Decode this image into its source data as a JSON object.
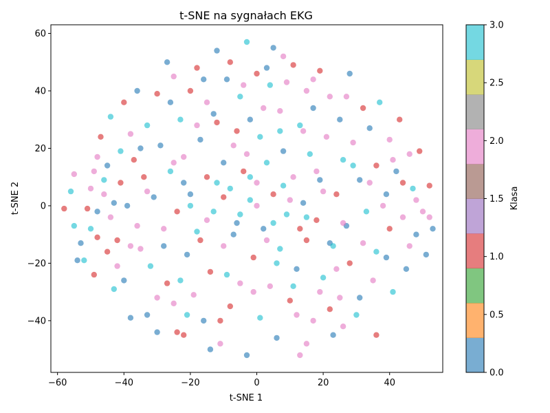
{
  "chart_data": {
    "type": "scatter",
    "title": "t-SNE na sygnałach EKG",
    "xlabel": "t-SNE 1",
    "ylabel": "t-SNE 2",
    "xlim": [
      -62,
      56
    ],
    "ylim": [
      -58,
      63
    ],
    "xticks": [
      -60,
      -40,
      -20,
      0,
      20,
      40
    ],
    "yticks": [
      -40,
      -20,
      0,
      20,
      40,
      60
    ],
    "xtick_labels": [
      "−60",
      "−40",
      "−20",
      "0",
      "20",
      "40"
    ],
    "ytick_labels": [
      "−40",
      "−20",
      "0",
      "20",
      "40",
      "60"
    ],
    "grid": false,
    "point_alpha": 0.6,
    "classes": [
      {
        "value": 0,
        "color": "#1f77b4"
      },
      {
        "value": 1,
        "color": "#d62728"
      },
      {
        "value": 2,
        "color": "#e377c2"
      },
      {
        "value": 3,
        "color": "#17becf"
      }
    ],
    "points": [
      [
        -56,
        5,
        3
      ],
      [
        -55,
        11,
        2
      ],
      [
        -55,
        -7,
        3
      ],
      [
        -58,
        -1,
        1
      ],
      [
        -54,
        -19,
        0
      ],
      [
        -53,
        -13,
        0
      ],
      [
        -52,
        -19,
        3
      ],
      [
        -51,
        -1,
        1
      ],
      [
        -50,
        6,
        2
      ],
      [
        -50,
        -8,
        3
      ],
      [
        -49,
        12,
        2
      ],
      [
        -49,
        -24,
        1
      ],
      [
        -48,
        17,
        2
      ],
      [
        -48,
        -11,
        1
      ],
      [
        -47,
        24,
        1
      ],
      [
        -46,
        9,
        3
      ],
      [
        -45,
        -16,
        1
      ],
      [
        -45,
        14,
        0
      ],
      [
        -44,
        31,
        3
      ],
      [
        -43,
        -29,
        3
      ],
      [
        -43,
        1,
        0
      ],
      [
        -42,
        -21,
        2
      ],
      [
        -42,
        -12,
        1
      ],
      [
        -41,
        19,
        3
      ],
      [
        -40,
        36,
        1
      ],
      [
        -40,
        -26,
        0
      ],
      [
        -39,
        0,
        0
      ],
      [
        -38,
        -39,
        0
      ],
      [
        -38,
        25,
        2
      ],
      [
        -37,
        16,
        1
      ],
      [
        -36,
        -7,
        2
      ],
      [
        -36,
        40,
        0
      ],
      [
        -35,
        -15,
        2
      ],
      [
        -34,
        10,
        1
      ],
      [
        -33,
        -38,
        0
      ],
      [
        -33,
        28,
        3
      ],
      [
        -32,
        -21,
        3
      ],
      [
        -31,
        3,
        0
      ],
      [
        -30,
        39,
        1
      ],
      [
        -30,
        -44,
        0
      ],
      [
        -29,
        21,
        0
      ],
      [
        -28,
        -8,
        2
      ],
      [
        -27,
        -27,
        1
      ],
      [
        -27,
        50,
        0
      ],
      [
        -26,
        12,
        3
      ],
      [
        -25,
        -34,
        2
      ],
      [
        -25,
        45,
        2
      ],
      [
        -24,
        -2,
        1
      ],
      [
        -23,
        30,
        3
      ],
      [
        -22,
        -45,
        1
      ],
      [
        -22,
        17,
        2
      ],
      [
        -21,
        -17,
        0
      ],
      [
        -20,
        40,
        1
      ],
      [
        -20,
        4,
        0
      ],
      [
        -19,
        -31,
        2
      ],
      [
        -18,
        48,
        1
      ],
      [
        -18,
        -9,
        3
      ],
      [
        -17,
        23,
        0
      ],
      [
        -16,
        -40,
        0
      ],
      [
        -15,
        10,
        1
      ],
      [
        -15,
        36,
        2
      ],
      [
        -14,
        -23,
        1
      ],
      [
        -13,
        -2,
        3
      ],
      [
        -12,
        54,
        0
      ],
      [
        -12,
        29,
        1
      ],
      [
        -11,
        -48,
        2
      ],
      [
        -10,
        15,
        0
      ],
      [
        -10,
        -14,
        2
      ],
      [
        -9,
        44,
        0
      ],
      [
        -8,
        6,
        3
      ],
      [
        -8,
        -35,
        1
      ],
      [
        -7,
        21,
        2
      ],
      [
        -6,
        -6,
        0
      ],
      [
        -5,
        38,
        3
      ],
      [
        -5,
        -27,
        2
      ],
      [
        -4,
        12,
        1
      ],
      [
        -3,
        57,
        3
      ],
      [
        -3,
        -52,
        0
      ],
      [
        -2,
        2,
        3
      ],
      [
        -2,
        30,
        0
      ],
      [
        -1,
        -18,
        1
      ],
      [
        0,
        46,
        1
      ],
      [
        0,
        8,
        2
      ],
      [
        1,
        -39,
        3
      ],
      [
        1,
        24,
        3
      ],
      [
        2,
        -8,
        0
      ],
      [
        3,
        48,
        0
      ],
      [
        3,
        15,
        3
      ],
      [
        4,
        -28,
        2
      ],
      [
        5,
        55,
        0
      ],
      [
        5,
        4,
        1
      ],
      [
        6,
        -46,
        0
      ],
      [
        7,
        33,
        2
      ],
      [
        7,
        -15,
        3
      ],
      [
        8,
        19,
        0
      ],
      [
        9,
        43,
        2
      ],
      [
        9,
        -3,
        3
      ],
      [
        10,
        -33,
        1
      ],
      [
        11,
        10,
        2
      ],
      [
        11,
        49,
        1
      ],
      [
        12,
        -22,
        0
      ],
      [
        13,
        28,
        3
      ],
      [
        13,
        -52,
        2
      ],
      [
        14,
        1,
        0
      ],
      [
        15,
        40,
        2
      ],
      [
        15,
        -12,
        1
      ],
      [
        16,
        18,
        3
      ],
      [
        17,
        -40,
        2
      ],
      [
        17,
        34,
        0
      ],
      [
        18,
        -5,
        1
      ],
      [
        19,
        47,
        1
      ],
      [
        19,
        9,
        0
      ],
      [
        20,
        -25,
        3
      ],
      [
        21,
        24,
        2
      ],
      [
        22,
        -13,
        0
      ],
      [
        22,
        38,
        2
      ],
      [
        23,
        -45,
        0
      ],
      [
        24,
        4,
        1
      ],
      [
        25,
        30,
        0
      ],
      [
        25,
        -32,
        2
      ],
      [
        26,
        16,
        3
      ],
      [
        27,
        -7,
        0
      ],
      [
        28,
        46,
        0
      ],
      [
        28,
        -20,
        1
      ],
      [
        29,
        22,
        2
      ],
      [
        30,
        -38,
        3
      ],
      [
        31,
        9,
        0
      ],
      [
        32,
        34,
        1
      ],
      [
        32,
        -13,
        2
      ],
      [
        33,
        -2,
        3
      ],
      [
        34,
        27,
        0
      ],
      [
        35,
        -26,
        2
      ],
      [
        36,
        14,
        1
      ],
      [
        36,
        -45,
        1
      ],
      [
        37,
        36,
        3
      ],
      [
        38,
        0,
        2
      ],
      [
        39,
        -18,
        0
      ],
      [
        40,
        23,
        2
      ],
      [
        40,
        -8,
        1
      ],
      [
        41,
        -30,
        3
      ],
      [
        42,
        12,
        0
      ],
      [
        43,
        30,
        1
      ],
      [
        44,
        -4,
        2
      ],
      [
        45,
        -22,
        0
      ],
      [
        46,
        18,
        2
      ],
      [
        47,
        6,
        3
      ],
      [
        48,
        -10,
        0
      ],
      [
        49,
        19,
        1
      ],
      [
        50,
        -2,
        2
      ],
      [
        51,
        -17,
        0
      ],
      [
        52,
        7,
        1
      ],
      [
        52,
        -4,
        2
      ],
      [
        53,
        -8,
        0
      ],
      [
        -20,
        0,
        3
      ],
      [
        -15,
        -5,
        2
      ],
      [
        -10,
        3,
        1
      ],
      [
        -5,
        -3,
        3
      ],
      [
        0,
        0,
        2
      ],
      [
        5,
        -6,
        3
      ],
      [
        10,
        2,
        2
      ],
      [
        15,
        -4,
        3
      ],
      [
        20,
        5,
        2
      ],
      [
        -12,
        8,
        3
      ],
      [
        -7,
        -10,
        0
      ],
      [
        -2,
        10,
        3
      ],
      [
        3,
        -12,
        2
      ],
      [
        8,
        7,
        3
      ],
      [
        13,
        -8,
        1
      ],
      [
        18,
        12,
        2
      ],
      [
        -17,
        -12,
        1
      ],
      [
        -22,
        8,
        0
      ],
      [
        23,
        -14,
        3
      ],
      [
        -3,
        18,
        2
      ],
      [
        6,
        -20,
        3
      ],
      [
        -25,
        15,
        2
      ],
      [
        26,
        -6,
        2
      ],
      [
        -28,
        -14,
        0
      ],
      [
        29,
        14,
        3
      ],
      [
        -33,
        5,
        2
      ],
      [
        34,
        8,
        2
      ],
      [
        -6,
        26,
        1
      ],
      [
        7,
        26,
        3
      ],
      [
        -9,
        -24,
        3
      ],
      [
        11,
        -28,
        3
      ],
      [
        -1,
        -30,
        2
      ],
      [
        2,
        34,
        2
      ],
      [
        -13,
        32,
        0
      ],
      [
        14,
        26,
        2
      ],
      [
        -18,
        28,
        2
      ],
      [
        19,
        -30,
        2
      ],
      [
        -23,
        -26,
        3
      ],
      [
        24,
        -22,
        2
      ],
      [
        -26,
        36,
        0
      ],
      [
        27,
        38,
        2
      ],
      [
        -30,
        -32,
        2
      ],
      [
        31,
        -32,
        0
      ],
      [
        -35,
        20,
        0
      ],
      [
        36,
        -16,
        3
      ],
      [
        -38,
        -14,
        2
      ],
      [
        39,
        4,
        0
      ],
      [
        -41,
        8,
        1
      ],
      [
        41,
        16,
        2
      ],
      [
        -44,
        -4,
        2
      ],
      [
        44,
        8,
        1
      ],
      [
        -46,
        4,
        2
      ],
      [
        46,
        -14,
        2
      ],
      [
        -48,
        -2,
        0
      ],
      [
        48,
        2,
        2
      ],
      [
        -11,
        -40,
        1
      ],
      [
        12,
        -38,
        2
      ],
      [
        -4,
        42,
        2
      ],
      [
        4,
        42,
        3
      ],
      [
        -16,
        44,
        0
      ],
      [
        17,
        44,
        2
      ],
      [
        -21,
        -38,
        3
      ],
      [
        22,
        -36,
        1
      ],
      [
        -8,
        50,
        1
      ],
      [
        8,
        52,
        2
      ],
      [
        -14,
        -50,
        0
      ],
      [
        15,
        -48,
        2
      ],
      [
        -24,
        -44,
        1
      ],
      [
        26,
        -42,
        2
      ]
    ],
    "colorbar": {
      "label": "Klasa",
      "ticks": [
        0,
        0.5,
        1,
        1.5,
        2,
        2.5,
        3
      ],
      "tick_labels": [
        "0.0",
        "0.5",
        "1.0",
        "1.5",
        "2.0",
        "2.5",
        "3.0"
      ],
      "segments": [
        "#1f77b4",
        "#ff7f0e",
        "#2ca02c",
        "#d62728",
        "#9467bd",
        "#8c564b",
        "#e377c2",
        "#7f7f7f",
        "#bcbd22",
        "#17becf"
      ],
      "alpha": 0.6
    }
  }
}
